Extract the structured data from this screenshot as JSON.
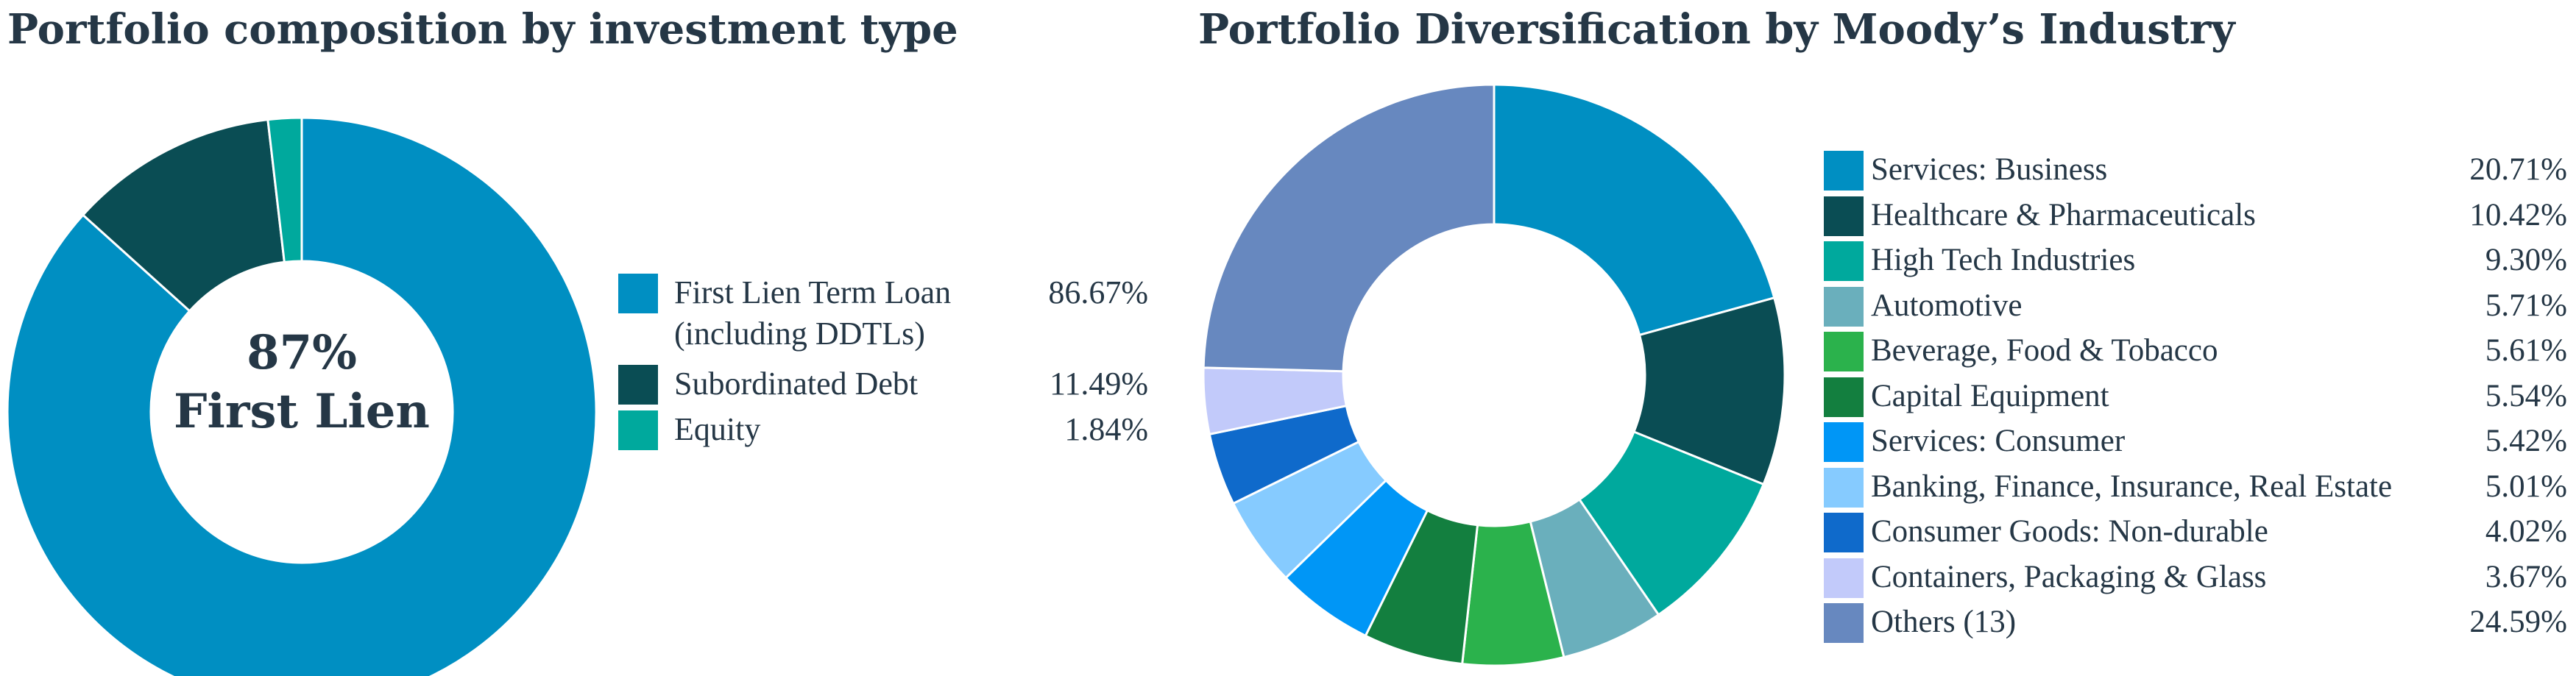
{
  "colors": {
    "text": "#253746",
    "first_lien": "#008FC2",
    "subordinated": "#0A4D54",
    "equity": "#00A99D",
    "services_business": "#008FC2",
    "healthcare": "#0A4D54",
    "high_tech": "#00A99D",
    "automotive": "#6AAFBC",
    "beverage": "#2BB24C",
    "capital_equipment": "#137F3F",
    "services_consumer": "#0096F6",
    "banking": "#86CBFF",
    "consumer_goods": "#0F6ACB",
    "containers": "#C2CAFA",
    "others": "#6788BF"
  },
  "left_chart": {
    "title": "Portfolio composition by investment type",
    "center_label_line1": "87%",
    "center_label_line2": "First Lien"
  },
  "right_chart": {
    "title": "Portfolio Diversification by Moody’s Industry"
  },
  "chart_data": [
    {
      "type": "pie",
      "donut": true,
      "title": "Portfolio composition by investment type",
      "legend_position": "right",
      "slices": [
        {
          "label_line1": "First Lien Term Loan",
          "label_line2": "(including DDTLs)",
          "value": 86.67,
          "display": "86.67%",
          "color_key": "first_lien"
        },
        {
          "label_line1": "Subordinated Debt",
          "label_line2": "",
          "value": 11.49,
          "display": "11.49%",
          "color_key": "subordinated"
        },
        {
          "label_line1": "Equity",
          "label_line2": "",
          "value": 1.84,
          "display": "1.84%",
          "color_key": "equity"
        }
      ]
    },
    {
      "type": "pie",
      "donut": true,
      "title": "Portfolio Diversification by Moody’s Industry",
      "legend_position": "right",
      "slices": [
        {
          "label": "Services: Business",
          "value": 20.71,
          "display": "20.71%",
          "color_key": "services_business"
        },
        {
          "label": "Healthcare & Pharmaceuticals",
          "value": 10.42,
          "display": "10.42%",
          "color_key": "healthcare"
        },
        {
          "label": "High Tech Industries",
          "value": 9.3,
          "display": "9.30%",
          "color_key": "high_tech"
        },
        {
          "label": "Automotive",
          "value": 5.71,
          "display": "5.71%",
          "color_key": "automotive"
        },
        {
          "label": "Beverage, Food & Tobacco",
          "value": 5.61,
          "display": "5.61%",
          "color_key": "beverage"
        },
        {
          "label": "Capital Equipment",
          "value": 5.54,
          "display": "5.54%",
          "color_key": "capital_equipment"
        },
        {
          "label": "Services: Consumer",
          "value": 5.42,
          "display": "5.42%",
          "color_key": "services_consumer"
        },
        {
          "label": "Banking, Finance, Insurance, Real Estate",
          "value": 5.01,
          "display": "5.01%",
          "color_key": "banking"
        },
        {
          "label": "Consumer Goods: Non-durable",
          "value": 4.02,
          "display": "4.02%",
          "color_key": "consumer_goods"
        },
        {
          "label": "Containers, Packaging & Glass",
          "value": 3.67,
          "display": "3.67%",
          "color_key": "containers"
        },
        {
          "label": "Others (13)",
          "value": 24.59,
          "display": "24.59%",
          "color_key": "others"
        }
      ]
    }
  ]
}
